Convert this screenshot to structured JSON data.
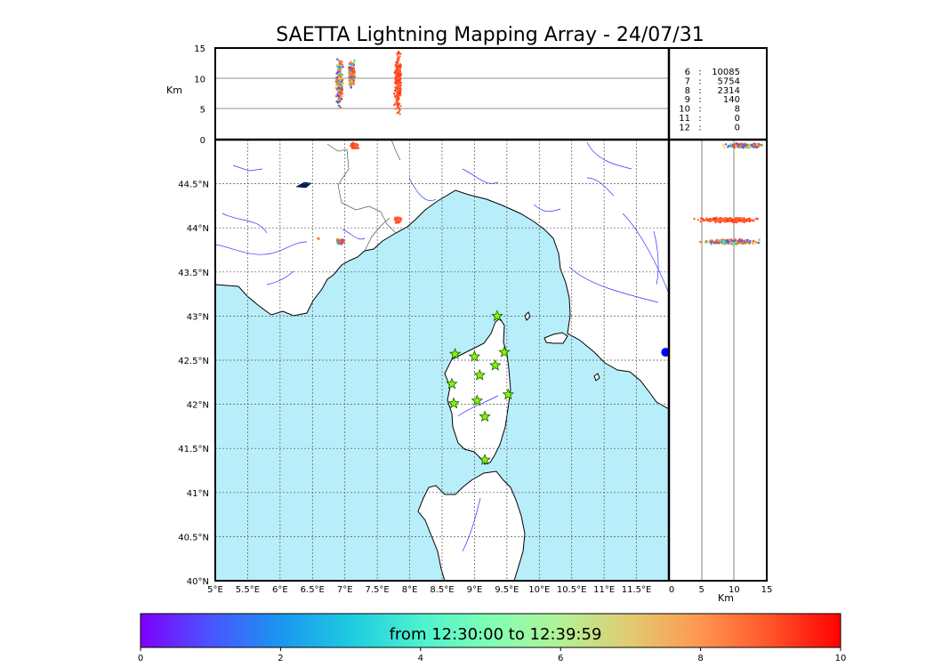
{
  "title": "SAETTA Lightning Mapping Array - 24/07/31",
  "colors": {
    "sea": "#b8eefa",
    "land": "#ffffff",
    "river": "#3333ff",
    "border": "#555555",
    "grid": "#555555",
    "station": "#7cfc00",
    "highlight_text": "#ff0000",
    "colorbar": [
      "#7f00ff",
      "#4a54ff",
      "#1a96f0",
      "#1ecbe1",
      "#4cf2ce",
      "#80ffb4",
      "#b2f296",
      "#e1cb71",
      "#ff9650",
      "#ff542a",
      "#ff0000"
    ]
  },
  "chart_data": [
    {
      "name": "altitude-longitude",
      "type": "scatter",
      "ylabel": "Km",
      "ylim": [
        0,
        15
      ],
      "yticks": [
        "0",
        "5",
        "10",
        "15"
      ],
      "yticks_values": [
        0,
        5,
        10,
        15
      ],
      "grid": "horizontal lines at 5 and 10 km",
      "clusters": [
        {
          "lon": 6.92,
          "alt_min": 4.5,
          "alt_max": 14.0,
          "color": "mixed"
        },
        {
          "lon": 7.1,
          "alt_min": 8.0,
          "alt_max": 13.5,
          "color": "mixed"
        },
        {
          "lon": 7.82,
          "alt_min": 3.5,
          "alt_max": 15.0,
          "color": "orange-red"
        }
      ]
    },
    {
      "name": "source-counts-table",
      "type": "table",
      "rows": [
        {
          "level": "6",
          "sep": ":",
          "count": "10085",
          "highlight": false
        },
        {
          "level": "7",
          "sep": ":",
          "count": "5754",
          "highlight": true
        },
        {
          "level": "8",
          "sep": ":",
          "count": "2314",
          "highlight": false
        },
        {
          "level": "9",
          "sep": ":",
          "count": "140",
          "highlight": false
        },
        {
          "level": "10",
          "sep": ":",
          "count": "8",
          "highlight": false
        },
        {
          "level": "11",
          "sep": ":",
          "count": "0",
          "highlight": false
        },
        {
          "level": "12",
          "sep": ":",
          "count": "0",
          "highlight": false
        }
      ]
    },
    {
      "name": "map-plan-view",
      "type": "scatter",
      "xlim": [
        5.0,
        12.0
      ],
      "ylim": [
        40.0,
        45.0
      ],
      "xticks": [
        "5°E",
        "5.5°E",
        "6°E",
        "6.5°E",
        "7°E",
        "7.5°E",
        "8°E",
        "8.5°E",
        "9°E",
        "9.5°E",
        "10°E",
        "10.5°E",
        "11°E",
        "11.5°E"
      ],
      "xticks_values": [
        5.0,
        5.5,
        6.0,
        6.5,
        7.0,
        7.5,
        8.0,
        8.5,
        9.0,
        9.5,
        10.0,
        10.5,
        11.0,
        11.5
      ],
      "yticks": [
        "40°N",
        "40.5°N",
        "41°N",
        "41.5°N",
        "42°N",
        "42.5°N",
        "43°N",
        "43.5°N",
        "44°N",
        "44.5°N"
      ],
      "yticks_values": [
        40.0,
        40.5,
        41.0,
        41.5,
        42.0,
        42.5,
        43.0,
        43.5,
        44.0,
        44.5
      ],
      "grid": "dotted",
      "lightning_clusters": [
        {
          "lon": 6.93,
          "lat": 43.84,
          "color": "mixed"
        },
        {
          "lon": 7.82,
          "lat": 44.09,
          "color": "orange-red"
        },
        {
          "lon": 7.15,
          "lat": 44.93,
          "color": "orange-red"
        },
        {
          "lon": 6.59,
          "lat": 43.88,
          "color": "orange-red"
        }
      ],
      "stations": [
        {
          "lon": 9.35,
          "lat": 43.0
        },
        {
          "lon": 8.7,
          "lat": 42.57
        },
        {
          "lon": 9.0,
          "lat": 42.54
        },
        {
          "lon": 9.46,
          "lat": 42.59
        },
        {
          "lon": 9.08,
          "lat": 42.33
        },
        {
          "lon": 9.32,
          "lat": 42.44
        },
        {
          "lon": 8.65,
          "lat": 42.23
        },
        {
          "lon": 9.52,
          "lat": 42.11
        },
        {
          "lon": 8.68,
          "lat": 42.01
        },
        {
          "lon": 9.04,
          "lat": 42.04
        },
        {
          "lon": 9.16,
          "lat": 41.86
        },
        {
          "lon": 9.16,
          "lat": 41.37
        }
      ],
      "other_markers": [
        {
          "lon": 11.95,
          "lat": 42.59,
          "color": "#0000ff"
        }
      ]
    },
    {
      "name": "latitude-altitude",
      "type": "scatter",
      "xlabel": "Km",
      "xlim": [
        0,
        15
      ],
      "xticks": [
        "0",
        "5",
        "10",
        "15"
      ],
      "xticks_values": [
        0,
        5,
        10,
        15
      ],
      "grid": "vertical lines at 5 and 10 km",
      "clusters": [
        {
          "lat": 44.93,
          "alt_min": 8.0,
          "alt_max": 15.0,
          "color": "mixed"
        },
        {
          "lat": 44.09,
          "alt_min": 3.5,
          "alt_max": 15.0,
          "color": "orange-red"
        },
        {
          "lat": 43.84,
          "alt_min": 4.5,
          "alt_max": 14.5,
          "color": "mixed"
        }
      ]
    },
    {
      "name": "time-colorbar",
      "type": "colorbar",
      "label": "from 12:30:00 to 12:39:59",
      "range": [
        0,
        10
      ],
      "ticks": [
        "0",
        "2",
        "4",
        "6",
        "8",
        "10"
      ],
      "ticks_values": [
        0,
        2,
        4,
        6,
        8,
        10
      ]
    }
  ]
}
